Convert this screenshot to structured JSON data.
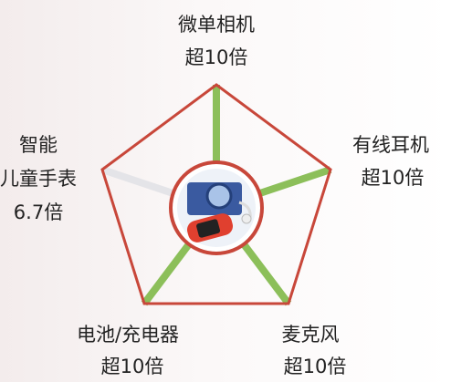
{
  "nodes": [
    {
      "label": "微单相机",
      "value": "超10倍"
    },
    {
      "label": "有线耳机",
      "value": "超10倍"
    },
    {
      "label": "麦克风",
      "value": "超10倍"
    },
    {
      "label": "电池/充电器",
      "value": "超10倍"
    },
    {
      "label_lines": [
        "智能",
        "儿童手表"
      ],
      "value": "6.7倍"
    }
  ]
}
